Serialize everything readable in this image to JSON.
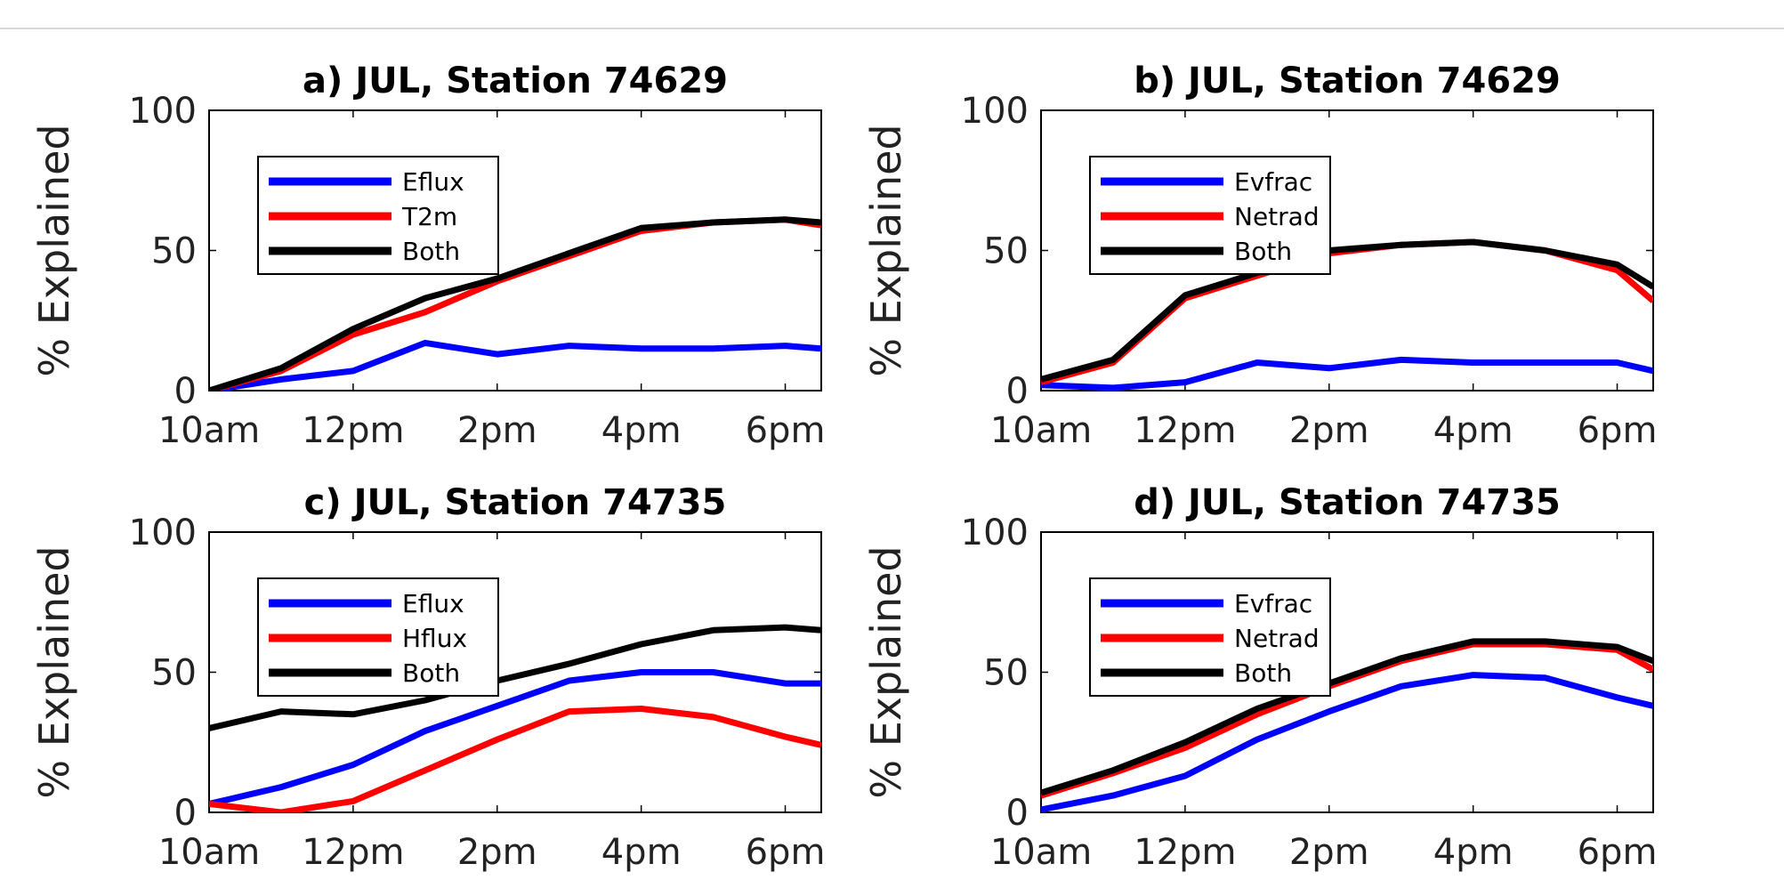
{
  "colors": {
    "blue": "#0000ff",
    "red": "#ff0000",
    "black": "#000000"
  },
  "chart_data": [
    {
      "type": "line",
      "title": "a) JUL, Station 74629",
      "ylabel": "% Explained",
      "xlabel": "",
      "x_hours": [
        10,
        11,
        12,
        13,
        14,
        15,
        16,
        17,
        18,
        18.5
      ],
      "xticks": [
        10,
        12,
        14,
        16,
        18
      ],
      "xtick_labels": [
        "10am",
        "12pm",
        "2pm",
        "4pm",
        "6pm"
      ],
      "xlim": [
        10,
        18.5
      ],
      "ylim": [
        0,
        100
      ],
      "yticks": [
        0,
        50,
        100
      ],
      "legend_position": "top-left",
      "series": [
        {
          "name": "Eflux",
          "color": "#0000ff",
          "values": [
            0,
            4,
            7,
            17,
            13,
            16,
            15,
            15,
            16,
            15
          ]
        },
        {
          "name": "T2m",
          "color": "#ff0000",
          "values": [
            0,
            7,
            20,
            28,
            39,
            48,
            57,
            60,
            61,
            59
          ]
        },
        {
          "name": "Both",
          "color": "#000000",
          "values": [
            0,
            8,
            22,
            33,
            40,
            49,
            58,
            60,
            61,
            60
          ]
        }
      ]
    },
    {
      "type": "line",
      "title": "b) JUL, Station 74629",
      "ylabel": "% Explained",
      "xlabel": "",
      "x_hours": [
        10,
        11,
        12,
        13,
        14,
        15,
        16,
        17,
        18,
        18.5
      ],
      "xticks": [
        10,
        12,
        14,
        16,
        18
      ],
      "xtick_labels": [
        "10am",
        "12pm",
        "2pm",
        "4pm",
        "6pm"
      ],
      "xlim": [
        10,
        18.5
      ],
      "ylim": [
        0,
        100
      ],
      "yticks": [
        0,
        50,
        100
      ],
      "legend_position": "top-left",
      "series": [
        {
          "name": "Evfrac",
          "color": "#0000ff",
          "values": [
            2,
            1,
            3,
            10,
            8,
            11,
            10,
            10,
            10,
            7
          ]
        },
        {
          "name": "Netrad",
          "color": "#ff0000",
          "values": [
            3,
            10,
            33,
            41,
            49,
            52,
            53,
            50,
            43,
            32
          ]
        },
        {
          "name": "Both",
          "color": "#000000",
          "values": [
            4,
            11,
            34,
            42,
            50,
            52,
            53,
            50,
            45,
            37
          ]
        }
      ]
    },
    {
      "type": "line",
      "title": "c) JUL, Station 74735",
      "ylabel": "% Explained",
      "xlabel": "",
      "x_hours": [
        10,
        11,
        12,
        13,
        14,
        15,
        16,
        17,
        18,
        18.5
      ],
      "xticks": [
        10,
        12,
        14,
        16,
        18
      ],
      "xtick_labels": [
        "10am",
        "12pm",
        "2pm",
        "4pm",
        "6pm"
      ],
      "xlim": [
        10,
        18.5
      ],
      "ylim": [
        0,
        100
      ],
      "yticks": [
        0,
        50,
        100
      ],
      "legend_position": "top-left",
      "series": [
        {
          "name": "Eflux",
          "color": "#0000ff",
          "values": [
            3,
            9,
            17,
            29,
            38,
            47,
            50,
            50,
            46,
            46
          ]
        },
        {
          "name": "Hflux",
          "color": "#ff0000",
          "values": [
            3,
            0,
            4,
            15,
            26,
            36,
            37,
            34,
            27,
            24
          ]
        },
        {
          "name": "Both",
          "color": "#000000",
          "values": [
            30,
            36,
            35,
            40,
            47,
            53,
            60,
            65,
            66,
            65
          ]
        }
      ]
    },
    {
      "type": "line",
      "title": "d) JUL, Station 74735",
      "ylabel": "% Explained",
      "xlabel": "",
      "x_hours": [
        10,
        11,
        12,
        13,
        14,
        15,
        16,
        17,
        18,
        18.5
      ],
      "xticks": [
        10,
        12,
        14,
        16,
        18
      ],
      "xtick_labels": [
        "10am",
        "12pm",
        "2pm",
        "4pm",
        "6pm"
      ],
      "xlim": [
        10,
        18.5
      ],
      "ylim": [
        0,
        100
      ],
      "yticks": [
        0,
        50,
        100
      ],
      "legend_position": "top-left",
      "series": [
        {
          "name": "Evfrac",
          "color": "#0000ff",
          "values": [
            1,
            6,
            13,
            26,
            36,
            45,
            49,
            48,
            41,
            38
          ]
        },
        {
          "name": "Netrad",
          "color": "#ff0000",
          "values": [
            6,
            14,
            23,
            35,
            45,
            54,
            60,
            60,
            58,
            51
          ]
        },
        {
          "name": "Both",
          "color": "#000000",
          "values": [
            7,
            15,
            25,
            37,
            46,
            55,
            61,
            61,
            59,
            54
          ]
        }
      ]
    }
  ]
}
